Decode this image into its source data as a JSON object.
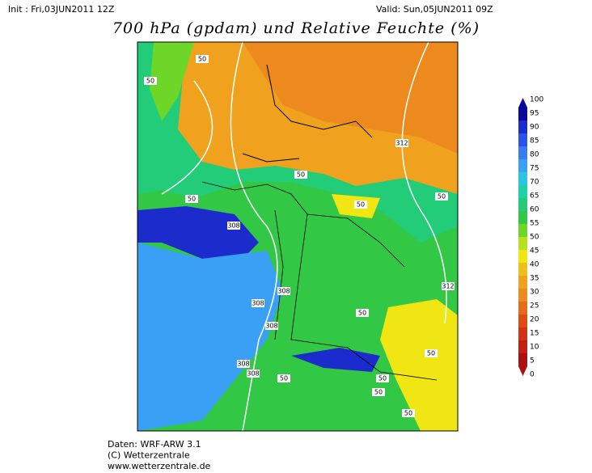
{
  "header": {
    "init": "Init : Fri,03JUN2011 12Z",
    "valid": "Valid: Sun,05JUN2011 09Z",
    "title": "700 hPa (gpdam) und Relative Feuchte (%)"
  },
  "colorbar": {
    "ticks": [
      100,
      95,
      90,
      85,
      80,
      75,
      70,
      65,
      60,
      55,
      50,
      45,
      40,
      35,
      30,
      25,
      20,
      15,
      10,
      5,
      0
    ],
    "colors": [
      "#0a0a9a",
      "#1c2ccc",
      "#2c52e6",
      "#3a7af2",
      "#3aa0f6",
      "#28c6e0",
      "#1ed2a8",
      "#22cc78",
      "#32c846",
      "#6ed628",
      "#b4e21e",
      "#f0e614",
      "#f0c01a",
      "#f0a21e",
      "#ec8a1e",
      "#e66a1a",
      "#de4a16",
      "#d43214",
      "#c41e14",
      "#ac1010"
    ]
  },
  "contour_labels": [
    "50",
    "50",
    "312",
    "50",
    "50",
    "50",
    "50",
    "308",
    "312",
    "308",
    "308",
    "50",
    "308",
    "50",
    "308",
    "308",
    "50",
    "50",
    "50",
    "50"
  ],
  "footer": [
    "Daten: WRF-ARW 3.1",
    "(C) Wetterzentrale",
    "www.wetterzentrale.de"
  ]
}
